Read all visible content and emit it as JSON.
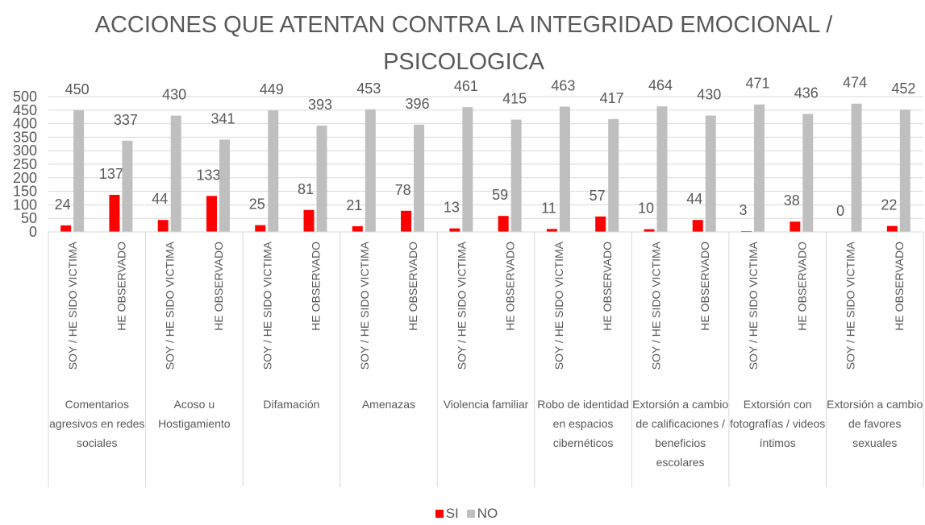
{
  "chart_data": {
    "type": "bar",
    "title": "ACCIONES QUE ATENTAN CONTRA LA INTEGRIDAD EMOCIONAL / PSICOLOGICA",
    "groups": [
      "Comentarios agresivos en redes sociales",
      "Acoso u Hostigamiento",
      "Difamación",
      "Amenazas",
      "Violencia familiar",
      "Robo de identidad en espacios cibernéticos",
      "Extorsión a cambio de calificaciones / beneficios escolares",
      "Extorsión con fotografías / videos íntimos",
      "Extorsión a cambio de favores sexuales"
    ],
    "categories": [
      "SOY / HE SIDO VICTIMA",
      "HE OBSERVADO",
      "SOY / HE SIDO VICTIMA",
      "HE OBSERVADO",
      "SOY / HE SIDO VICTIMA",
      "HE OBSERVADO",
      "SOY / HE SIDO VICTIMA",
      "HE OBSERVADO",
      "SOY / HE SIDO VICTIMA",
      "HE OBSERVADO",
      "SOY / HE SIDO VICTIMA",
      "HE OBSERVADO",
      "SOY / HE SIDO VICTIMA",
      "HE OBSERVADO",
      "SOY / HE SIDO VICTIMA",
      "HE OBSERVADO",
      "SOY / HE SIDO VICTIMA",
      "HE OBSERVADO"
    ],
    "series": [
      {
        "name": "SI",
        "color": "#ff0000",
        "values": [
          24,
          137,
          44,
          133,
          25,
          81,
          21,
          78,
          13,
          59,
          11,
          57,
          10,
          44,
          3,
          38,
          0,
          22
        ]
      },
      {
        "name": "NO",
        "color": "#bfbfbf",
        "values": [
          450,
          337,
          430,
          341,
          449,
          393,
          453,
          396,
          461,
          415,
          463,
          417,
          464,
          430,
          471,
          436,
          474,
          452
        ]
      }
    ],
    "ylim": [
      0,
      500
    ],
    "yticks": [
      0,
      50,
      100,
      150,
      200,
      250,
      300,
      350,
      400,
      450,
      500
    ],
    "grid": true,
    "legend": "bottom"
  }
}
